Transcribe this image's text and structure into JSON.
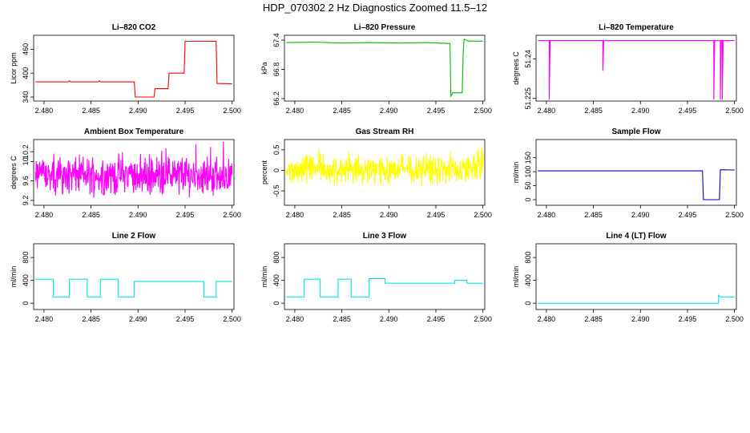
{
  "title": "HDP_070302  2 Hz Diagnostics Zoomed 11.5–12",
  "chart_data": [
    {
      "type": "line",
      "title": "Li–820 CO2",
      "ylabel": "Licor ppm",
      "color": "#ff0000",
      "xlim": [
        2.4789,
        2.5002
      ],
      "ylim": [
        330,
        495
      ],
      "xticks": [
        "2.480",
        "2.485",
        "2.490",
        "2.495",
        "2.500"
      ],
      "yticks": [
        340,
        400,
        460
      ],
      "series": [
        {
          "x": [
            2.4791,
            2.4826,
            2.4827,
            2.4828,
            2.4858,
            2.4859,
            2.486,
            2.4896,
            2.4897,
            2.4917,
            2.4918,
            2.4932,
            2.4933,
            2.4949,
            2.495,
            2.4983,
            2.4984,
            2.5
          ],
          "y": [
            378,
            378,
            381,
            378,
            378,
            381,
            378,
            378,
            340,
            340,
            361,
            361,
            400,
            400,
            480,
            480,
            374,
            373
          ]
        }
      ]
    },
    {
      "type": "line",
      "title": "Li–820 Pressure",
      "ylabel": "kPa",
      "color": "#00bb00",
      "xlim": [
        2.4789,
        2.5002
      ],
      "ylim": [
        66.15,
        67.5
      ],
      "xticks": [
        "2.480",
        "2.485",
        "2.490",
        "2.495",
        "2.500"
      ],
      "yticks": [
        66.2,
        66.8,
        67.4
      ],
      "series": [
        {
          "x": [
            2.4791,
            2.482,
            2.485,
            2.488,
            2.491,
            2.494,
            2.4965,
            2.4966,
            2.4968,
            2.4978,
            2.4979,
            2.498,
            2.4985,
            2.5
          ],
          "y": [
            67.35,
            67.36,
            67.34,
            67.35,
            67.34,
            67.35,
            67.33,
            66.25,
            66.32,
            66.32,
            67.1,
            67.42,
            67.38,
            67.38
          ]
        }
      ]
    },
    {
      "type": "line",
      "title": "Li–820 Temperature",
      "ylabel": "degrees C",
      "color": "#ff00ff",
      "xlim": [
        2.4789,
        2.5002
      ],
      "ylim": [
        51.224,
        51.249
      ],
      "xticks": [
        "2.480",
        "2.485",
        "2.490",
        "2.495",
        "2.500"
      ],
      "yticks": [
        51.225,
        51.24
      ],
      "series": [
        {
          "x": [
            2.4791,
            2.4803,
            2.4803,
            2.4804,
            2.486,
            2.486,
            2.4861,
            2.4978,
            2.4978,
            2.4979,
            2.4985,
            2.4985,
            2.4986,
            2.4987,
            2.4987,
            2.4988,
            2.5
          ],
          "y": [
            51.247,
            51.247,
            51.2245,
            51.247,
            51.247,
            51.2355,
            51.247,
            51.247,
            51.2245,
            51.247,
            51.247,
            51.2245,
            51.247,
            51.247,
            51.2245,
            51.247,
            51.247
          ]
        }
      ]
    },
    {
      "type": "line",
      "title": "Ambient Box Temperature",
      "ylabel": "degrees C",
      "color": "#ff00ff",
      "xlim": [
        2.4789,
        2.5002
      ],
      "ylim": [
        9.1,
        10.45
      ],
      "xticks": [
        "2.480",
        "2.485",
        "2.490",
        "2.495",
        "2.500"
      ],
      "yticks": [
        9.2,
        9.6,
        10.0,
        10.2
      ],
      "noise": {
        "center": 9.72,
        "amplitude": 0.34,
        "clip": [
          9.2,
          10.4
        ]
      }
    },
    {
      "type": "line",
      "title": "Gas Stream RH",
      "ylabel": "percent",
      "color": "#ffff00",
      "xlim": [
        2.4789,
        2.5002
      ],
      "ylim": [
        -0.85,
        0.75
      ],
      "xticks": [
        "2.480",
        "2.485",
        "2.490",
        "2.495",
        "2.500"
      ],
      "yticks": [
        -0.5,
        0.0,
        0.5
      ],
      "noise": {
        "center": 0.02,
        "amplitude": 0.3,
        "clip": [
          -0.8,
          0.7
        ]
      }
    },
    {
      "type": "line",
      "title": "Sample Flow",
      "ylabel": "ml/min",
      "color": "#0000cc",
      "xlim": [
        2.4789,
        2.5002
      ],
      "ylim": [
        -20,
        215
      ],
      "xticks": [
        "2.480",
        "2.485",
        "2.490",
        "2.495",
        "2.500"
      ],
      "yticks": [
        0,
        50,
        100,
        150
      ],
      "series": [
        {
          "x": [
            2.4791,
            2.4966,
            2.4967,
            2.4984,
            2.4985,
            2.5
          ],
          "y": [
            103,
            103,
            0,
            0,
            107,
            106
          ]
        }
      ]
    },
    {
      "type": "line",
      "title": "Line 2 Flow",
      "ylabel": "ml/min",
      "color": "#00e5e5",
      "xlim": [
        2.4789,
        2.5002
      ],
      "ylim": [
        -110,
        1040
      ],
      "xticks": [
        "2.480",
        "2.485",
        "2.490",
        "2.495",
        "2.500"
      ],
      "yticks": [
        0,
        400,
        800
      ],
      "series": [
        {
          "x": [
            2.4791,
            2.481,
            2.481,
            2.4827,
            2.4827,
            2.4846,
            2.4846,
            2.486,
            2.486,
            2.4879,
            2.4879,
            2.4896,
            2.4896,
            2.497,
            2.497,
            2.4983,
            2.4983,
            2.5
          ],
          "y": [
            420,
            420,
            110,
            110,
            420,
            420,
            110,
            110,
            420,
            420,
            110,
            110,
            380,
            380,
            110,
            110,
            380,
            380
          ]
        }
      ]
    },
    {
      "type": "line",
      "title": "Line 3 Flow",
      "ylabel": "ml/min",
      "color": "#00e5e5",
      "xlim": [
        2.4789,
        2.5002
      ],
      "ylim": [
        -110,
        1040
      ],
      "xticks": [
        "2.480",
        "2.485",
        "2.490",
        "2.495",
        "2.500"
      ],
      "yticks": [
        0,
        400,
        800
      ],
      "series": [
        {
          "x": [
            2.4791,
            2.481,
            2.481,
            2.4827,
            2.4827,
            2.4846,
            2.4846,
            2.486,
            2.486,
            2.4879,
            2.4879,
            2.4896,
            2.4896,
            2.497,
            2.497,
            2.4983,
            2.4983,
            2.5
          ],
          "y": [
            110,
            110,
            420,
            420,
            110,
            110,
            420,
            420,
            110,
            110,
            430,
            430,
            350,
            350,
            400,
            400,
            350,
            350
          ]
        }
      ]
    },
    {
      "type": "line",
      "title": "Line 4 (LT) Flow",
      "ylabel": "ml/min",
      "color": "#00e5e5",
      "xlim": [
        2.4789,
        2.5002
      ],
      "ylim": [
        -110,
        1040
      ],
      "xticks": [
        "2.480",
        "2.485",
        "2.490",
        "2.495",
        "2.500"
      ],
      "yticks": [
        0,
        400,
        800
      ],
      "series": [
        {
          "x": [
            2.4791,
            2.4983,
            2.4983,
            2.4985,
            2.5
          ],
          "y": [
            0,
            0,
            140,
            110,
            110
          ]
        }
      ]
    }
  ]
}
